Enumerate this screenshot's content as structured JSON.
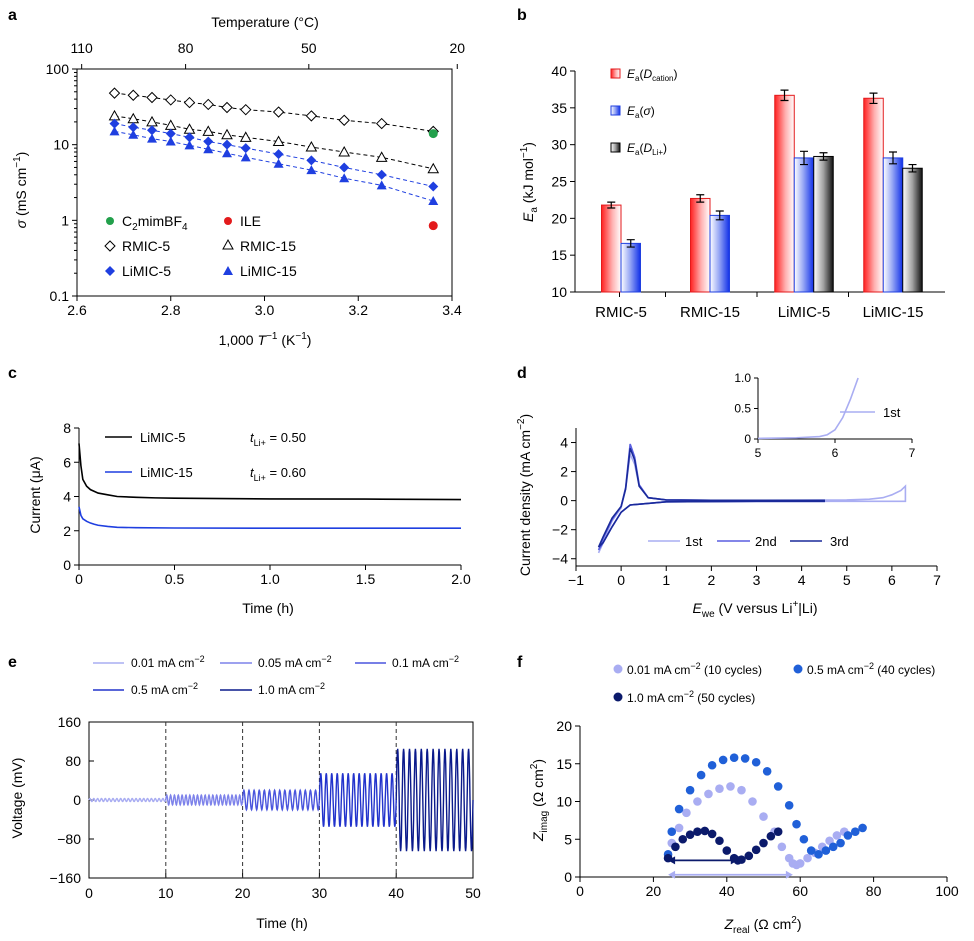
{
  "panels": {
    "a": {
      "letter": "a",
      "top_axis_title": "Temperature (°C)",
      "top_ticks": [
        "110",
        "80",
        "50",
        "20"
      ],
      "top_tick_temps": [
        110,
        80,
        50,
        20
      ],
      "x_ticks": [
        "2.6",
        "2.8",
        "3.0",
        "3.2",
        "3.4"
      ],
      "y_ticks": [
        "0.1",
        "1",
        "10",
        "100"
      ],
      "xlabel": {
        "pre": "1,000 ",
        "T": "T",
        "sup": "−1",
        "post": " (K",
        "sup2": "−1",
        "end": ")"
      },
      "ylabel": {
        "sigma": "σ",
        "pre": " (mS cm",
        "sup": "−1",
        "end": ")"
      },
      "legend": {
        "c2": {
          "pre": "C",
          "sub": "2",
          "post": "mimBF",
          "sub2": "4"
        },
        "ile": "ILE",
        "rmic5": "RMIC-5",
        "rmic15": "RMIC-15",
        "limic5": "LiMIC-5",
        "limic15": "LiMIC-15"
      }
    },
    "b": {
      "letter": "b",
      "categories": [
        "RMIC-5",
        "RMIC-15",
        "LiMIC-5",
        "LiMIC-15"
      ],
      "y_ticks": [
        "10",
        "15",
        "20",
        "25",
        "30",
        "35",
        "40"
      ],
      "ylabel": {
        "E": "E",
        "sub": "a",
        "pre": " (kJ mol",
        "sup": "−1",
        "end": ")"
      },
      "legend": [
        {
          "E": "E",
          "sub": "a",
          "pre": "(",
          "D": "D",
          "dsub": "cation",
          "end": ")"
        },
        {
          "E": "E",
          "sub": "a",
          "pre": "(",
          "D": "σ",
          "dsub": "",
          "end": ")"
        },
        {
          "E": "E",
          "sub": "a",
          "pre": "(",
          "D": "D",
          "dsub": "Li+",
          "end": ")"
        }
      ]
    },
    "c": {
      "letter": "c",
      "x_ticks": [
        "0",
        "0.5",
        "1.0",
        "1.5",
        "2.0"
      ],
      "y_ticks": [
        "0",
        "2",
        "4",
        "6",
        "8"
      ],
      "xlabel": "Time (h)",
      "ylabel": "Current (μA)",
      "legend": [
        {
          "name": "LiMIC-5",
          "t": "t",
          "tsub": "Li+",
          "val": " = 0.50"
        },
        {
          "name": "LiMIC-15",
          "t": "t",
          "tsub": "Li+",
          "val": " = 0.60"
        }
      ]
    },
    "d": {
      "letter": "d",
      "x_ticks": [
        "−1",
        "0",
        "1",
        "2",
        "3",
        "4",
        "5",
        "6",
        "7"
      ],
      "y_ticks": [
        "−4",
        "−2",
        "0",
        "2",
        "4"
      ],
      "xlabel": {
        "E": "E",
        "sub": "we",
        "pre": " (V versus Li",
        "sup": "+",
        "end": "|Li)"
      },
      "ylabel": {
        "pre": "Current density (mA cm",
        "sup": "−2",
        "end": ")"
      },
      "legend": [
        "1st",
        "2nd",
        "3rd"
      ],
      "inset": {
        "x_ticks": [
          "5",
          "6",
          "7"
        ],
        "y_ticks": [
          "0",
          "0.5",
          "1.0"
        ],
        "legend": "1st"
      }
    },
    "e": {
      "letter": "e",
      "x_ticks": [
        "0",
        "10",
        "20",
        "30",
        "40",
        "50"
      ],
      "y_ticks": [
        "160",
        "80",
        "0",
        "−80",
        "−160"
      ],
      "xlabel": "Time (h)",
      "ylabel": "Voltage (mV)",
      "legend": [
        {
          "pre": "0.01 mA cm",
          "sup": "−2"
        },
        {
          "pre": "0.05 mA cm",
          "sup": "−2"
        },
        {
          "pre": "0.1 mA cm",
          "sup": "−2"
        },
        {
          "pre": "0.5 mA cm",
          "sup": "−2"
        },
        {
          "pre": "1.0 mA cm",
          "sup": "−2"
        }
      ]
    },
    "f": {
      "letter": "f",
      "x_ticks": [
        "0",
        "20",
        "40",
        "60",
        "80",
        "100"
      ],
      "y_ticks": [
        "0",
        "5",
        "10",
        "15",
        "20"
      ],
      "xlabel": {
        "Z": "Z",
        "sub": "real",
        "pre": " (Ω cm",
        "sup": "2",
        "end": ")"
      },
      "ylabel": {
        "Z": "Z",
        "sub": "imag",
        "pre": " (Ω cm",
        "sup": "2",
        "end": ")"
      },
      "legend": [
        {
          "pre": "0.01 mA cm",
          "sup": "−2",
          "post": " (10 cycles)"
        },
        {
          "pre": "0.5 mA cm",
          "sup": "−2",
          "post": " (40 cycles)"
        },
        {
          "pre": "1.0 mA cm",
          "sup": "−2",
          "post": " (50 cycles)"
        }
      ]
    }
  },
  "colors": {
    "green": "#22a04b",
    "red": "#e31a1c",
    "blue": "#1f3fe0",
    "black": "#000000",
    "grey": "#888888",
    "light": "#a9adf2",
    "mid": "#5a5fe0",
    "dark": "#1a2a9a",
    "navy": "#0b1a6b",
    "rblue": "#2060d8"
  },
  "chart_data": [
    {
      "panel": "a",
      "type": "scatter",
      "xlabel": "1,000 T−1 (K−1)",
      "ylabel": "σ (mS cm−1)",
      "xlim": [
        2.6,
        3.4
      ],
      "ylim": [
        0.1,
        100
      ],
      "yscale": "log",
      "series": [
        {
          "name": "RMIC-5",
          "marker": "diamond-open",
          "x": [
            2.68,
            2.72,
            2.76,
            2.8,
            2.84,
            2.88,
            2.92,
            2.96,
            3.03,
            3.1,
            3.17,
            3.25,
            3.36
          ],
          "y": [
            48,
            45,
            42,
            39,
            36,
            34,
            31,
            29,
            27,
            24,
            21,
            19,
            15
          ]
        },
        {
          "name": "RMIC-15",
          "marker": "triangle-open",
          "x": [
            2.68,
            2.72,
            2.76,
            2.8,
            2.84,
            2.88,
            2.92,
            2.96,
            3.03,
            3.1,
            3.17,
            3.25,
            3.36
          ],
          "y": [
            24,
            22,
            20,
            18,
            16,
            15,
            13.5,
            12.5,
            11,
            9.3,
            8.0,
            6.8,
            4.8
          ]
        },
        {
          "name": "LiMIC-5",
          "marker": "diamond-filled",
          "x": [
            2.68,
            2.72,
            2.76,
            2.8,
            2.84,
            2.88,
            2.92,
            2.96,
            3.03,
            3.1,
            3.17,
            3.25,
            3.36
          ],
          "y": [
            19,
            17,
            15.5,
            14,
            12.5,
            11,
            10,
            9,
            7.5,
            6.2,
            5.0,
            4.0,
            2.8
          ]
        },
        {
          "name": "LiMIC-15",
          "marker": "triangle-filled",
          "x": [
            2.68,
            2.72,
            2.76,
            2.8,
            2.84,
            2.88,
            2.92,
            2.96,
            3.03,
            3.1,
            3.17,
            3.25,
            3.36
          ],
          "y": [
            15,
            13.5,
            12,
            11,
            9.8,
            8.7,
            7.7,
            6.8,
            5.6,
            4.6,
            3.6,
            2.9,
            1.8
          ]
        },
        {
          "name": "C2mimBF4",
          "marker": "circle-filled",
          "x": [
            3.36
          ],
          "y": [
            14
          ]
        },
        {
          "name": "ILE",
          "marker": "circle-filled",
          "x": [
            3.36
          ],
          "y": [
            0.85
          ]
        }
      ]
    },
    {
      "panel": "b",
      "type": "bar",
      "ylabel": "Ea (kJ mol−1)",
      "ylim": [
        10,
        40
      ],
      "categories": [
        "RMIC-5",
        "RMIC-15",
        "LiMIC-5",
        "LiMIC-15"
      ],
      "series": [
        {
          "name": "Ea(Dcation)",
          "values": [
            21.8,
            22.7,
            36.7,
            36.3
          ],
          "errors": [
            0.4,
            0.5,
            0.7,
            0.7
          ]
        },
        {
          "name": "Ea(σ)",
          "values": [
            16.6,
            20.4,
            28.2,
            28.2
          ],
          "errors": [
            0.5,
            0.6,
            0.9,
            0.8
          ]
        },
        {
          "name": "Ea(DLi+)",
          "values": [
            null,
            null,
            28.4,
            26.8
          ],
          "errors": [
            null,
            null,
            0.5,
            0.5
          ]
        }
      ]
    },
    {
      "panel": "c",
      "type": "line",
      "xlabel": "Time (h)",
      "ylabel": "Current (μA)",
      "xlim": [
        0,
        2.0
      ],
      "ylim": [
        0,
        8
      ],
      "series": [
        {
          "name": "LiMIC-5",
          "t_Li+": 0.5,
          "x": [
            0,
            0.01,
            0.02,
            0.04,
            0.06,
            0.08,
            0.1,
            0.15,
            0.2,
            0.3,
            0.4,
            0.5,
            0.75,
            1.0,
            1.5,
            2.0
          ],
          "y": [
            7.1,
            5.8,
            5.0,
            4.6,
            4.4,
            4.3,
            4.2,
            4.1,
            4.0,
            3.95,
            3.92,
            3.9,
            3.88,
            3.86,
            3.85,
            3.82
          ]
        },
        {
          "name": "LiMIC-15",
          "t_Li+": 0.6,
          "x": [
            0,
            0.01,
            0.02,
            0.04,
            0.06,
            0.08,
            0.1,
            0.15,
            0.2,
            0.3,
            0.5,
            1.0,
            1.5,
            2.0
          ],
          "y": [
            3.4,
            2.9,
            2.7,
            2.55,
            2.45,
            2.38,
            2.32,
            2.25,
            2.2,
            2.18,
            2.16,
            2.15,
            2.15,
            2.15
          ]
        }
      ]
    },
    {
      "panel": "d",
      "type": "line",
      "xlabel": "Ewe (V versus Li+|Li)",
      "ylabel": "Current density (mA cm−2)",
      "xlim": [
        -1,
        7
      ],
      "ylim": [
        -4.5,
        5
      ],
      "series": [
        {
          "name": "1st",
          "x": [
            -0.5,
            -0.4,
            -0.2,
            0,
            0.1,
            0.2,
            0.3,
            0.4,
            0.6,
            1,
            2,
            3,
            4,
            5,
            5.5,
            5.8,
            6.0,
            6.2,
            6.3
          ],
          "y": [
            -3.6,
            -2.8,
            -1.4,
            -0.5,
            0.8,
            3.2,
            2.5,
            1.0,
            0.2,
            0.05,
            0.02,
            0.02,
            0.03,
            0.05,
            0.1,
            0.2,
            0.4,
            0.7,
            1.0
          ]
        },
        {
          "name": "2nd",
          "x": [
            -0.5,
            -0.4,
            -0.2,
            0,
            0.1,
            0.2,
            0.3,
            0.4,
            0.6,
            1,
            2,
            3,
            4,
            4.5
          ],
          "y": [
            -3.4,
            -2.6,
            -1.3,
            -0.4,
            0.9,
            3.9,
            3.0,
            1.1,
            0.2,
            0.05,
            0.02,
            0.02,
            0.02,
            0.02
          ]
        },
        {
          "name": "3rd",
          "x": [
            -0.5,
            -0.4,
            -0.2,
            0,
            0.1,
            0.2,
            0.3,
            0.4,
            0.6,
            1,
            2,
            3,
            4,
            4.5
          ],
          "y": [
            -3.2,
            -2.5,
            -1.2,
            -0.4,
            0.8,
            3.6,
            2.8,
            1.0,
            0.2,
            0.05,
            0.02,
            0.02,
            0.02,
            0.02
          ]
        }
      ],
      "inset": {
        "xlim": [
          5,
          7
        ],
        "ylim": [
          0,
          1.0
        ],
        "series": {
          "name": "1st",
          "x": [
            5,
            5.5,
            5.8,
            5.9,
            6.0,
            6.1,
            6.2,
            6.3
          ],
          "y": [
            0.01,
            0.02,
            0.04,
            0.07,
            0.15,
            0.35,
            0.65,
            1.0
          ]
        }
      }
    },
    {
      "panel": "e",
      "type": "line",
      "xlabel": "Time (h)",
      "ylabel": "Voltage (mV)",
      "xlim": [
        0,
        50
      ],
      "ylim": [
        -160,
        160
      ],
      "series": [
        {
          "name": "0.01 mA cm−2",
          "t_range": [
            0,
            10
          ],
          "amplitude_mV": 3
        },
        {
          "name": "0.05 mA cm−2",
          "t_range": [
            10,
            20
          ],
          "amplitude_mV": 10
        },
        {
          "name": "0.1 mA cm−2",
          "t_range": [
            20,
            30
          ],
          "amplitude_mV": 20
        },
        {
          "name": "0.5 mA cm−2",
          "t_range": [
            30,
            40
          ],
          "amplitude_mV": 55
        },
        {
          "name": "1.0 mA cm−2",
          "t_range": [
            40,
            50
          ],
          "amplitude_mV": 105
        }
      ],
      "dividers_h": [
        10,
        20,
        30,
        40
      ]
    },
    {
      "panel": "f",
      "type": "scatter",
      "xlabel": "Zreal (Ω cm2)",
      "ylabel": "Zimag (Ω cm2)",
      "xlim": [
        0,
        100
      ],
      "ylim": [
        0,
        20
      ],
      "series": [
        {
          "name": "0.01 mA cm−2 (10 cycles)",
          "x": [
            24,
            25,
            27,
            29,
            32,
            35,
            38,
            41,
            44,
            47,
            50,
            53,
            55,
            57,
            58,
            59,
            60,
            62,
            64,
            66,
            68,
            70,
            72
          ],
          "y": [
            2.5,
            4.5,
            6.5,
            8.5,
            10,
            11,
            11.7,
            12,
            11.5,
            10,
            8,
            6,
            4,
            2.5,
            1.8,
            1.6,
            1.8,
            2.5,
            3.2,
            4.0,
            4.8,
            5.5,
            6.0
          ]
        },
        {
          "name": "0.5 mA cm−2 (40 cycles)",
          "x": [
            24,
            25,
            27,
            30,
            33,
            36,
            39,
            42,
            45,
            48,
            51,
            54,
            57,
            59,
            61,
            63,
            65,
            67,
            69,
            71,
            73,
            75,
            77
          ],
          "y": [
            3,
            6,
            9,
            11.5,
            13.5,
            14.8,
            15.5,
            15.8,
            15.7,
            15.2,
            14,
            12,
            9.5,
            7,
            5,
            3.5,
            3,
            3.5,
            4,
            4.5,
            5.5,
            6.0,
            6.5
          ]
        },
        {
          "name": "1.0 mA cm−2 (50 cycles)",
          "x": [
            24,
            26,
            28,
            30,
            32,
            34,
            36,
            38,
            40,
            42,
            43,
            44,
            46,
            48,
            50,
            52,
            54
          ],
          "y": [
            2.5,
            4,
            5,
            5.6,
            6.0,
            6.1,
            5.7,
            4.8,
            3.5,
            2.5,
            2.2,
            2.3,
            2.8,
            3.6,
            4.5,
            5.4,
            6.0
          ]
        }
      ],
      "arrows": [
        {
          "from": 43,
          "to": 24,
          "y": 2.2
        },
        {
          "from": 58,
          "to": 24,
          "y": 0.3
        }
      ]
    }
  ]
}
